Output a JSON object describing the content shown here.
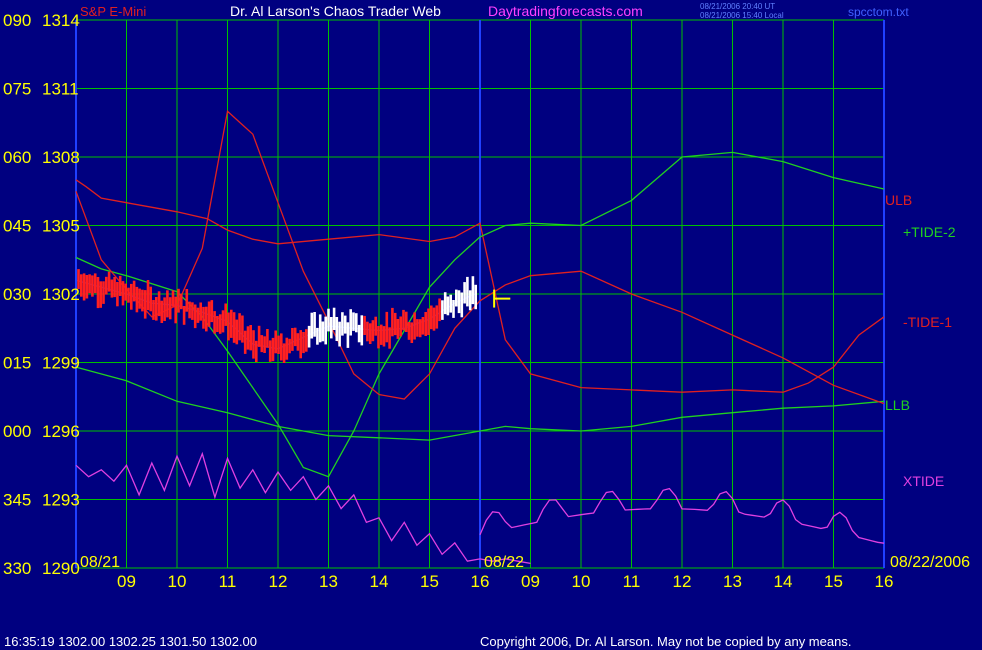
{
  "header": {
    "instrument": "S&P E-Mini",
    "title": "Dr. Al Larson's Chaos Trader Web",
    "site": "Daytradingforecasts.com",
    "timestamp_ut": "08/21/2006 20:40 UT",
    "timestamp_local": "08/21/2006 15:40 Local",
    "filename": "spcctom.txt"
  },
  "footer": {
    "quote": "16:35:19  1302.00 1302.25 1301.50 1302.00",
    "copyright": "Copyright 2006, Dr. Al Larson. May not be copied by any means."
  },
  "colors": {
    "background": "#000080",
    "grid": "#00c000",
    "axis_text": "#ffff00",
    "ulb": "#e02020",
    "llb": "#20d020",
    "xtide": "#e040e0",
    "tide_blue": "#2040ff",
    "bars_red": "#ff2020",
    "bars_white": "#ffffff",
    "forecast_mark": "#ffff00"
  },
  "chart_data": {
    "type": "line",
    "y_left_angle_labels": [
      "090",
      "075",
      "060",
      "045",
      "030",
      "015",
      "000",
      "345",
      "330"
    ],
    "y_right_price_labels": [
      "1314",
      "1311",
      "1308",
      "1305",
      "1302",
      "1299",
      "1296",
      "1293",
      "1290"
    ],
    "ylim": [
      1290,
      1314
    ],
    "x_hour_labels": [
      "09",
      "10",
      "11",
      "12",
      "13",
      "14",
      "15",
      "16",
      "09",
      "10",
      "11",
      "12",
      "13",
      "14",
      "15",
      "16"
    ],
    "date_labels": [
      "08/21",
      "08/22",
      "08/22/2006"
    ],
    "series_labels": [
      "ULB",
      "+TIDE-2",
      "-TIDE-1",
      "LLB",
      "XTIDE"
    ],
    "series": [
      {
        "name": "ULB",
        "x": [
          0,
          0.2,
          0.5,
          1.0,
          2.0,
          2.6,
          3.0,
          3.5,
          4.0,
          5.0,
          6.0,
          7.0,
          7.5,
          8.0,
          8.5,
          9.0,
          10.0,
          11.0,
          12.0,
          13.0,
          14.0,
          14.5,
          15.0,
          15.5,
          16.0
        ],
        "y": [
          1307.0,
          1306.7,
          1306.2,
          1306.0,
          1305.6,
          1305.3,
          1304.8,
          1304.4,
          1304.2,
          1304.4,
          1304.6,
          1304.3,
          1304.5,
          1305.1,
          1300.0,
          1298.5,
          1297.9,
          1297.8,
          1297.7,
          1297.8,
          1297.7,
          1298.1,
          1298.8,
          1300.2,
          1301.0
        ]
      },
      {
        "name": "LLB",
        "x": [
          0,
          1.0,
          2.0,
          3.0,
          4.0,
          5.0,
          6.0,
          7.0,
          8.0,
          8.5,
          9.0,
          10.0,
          11.0,
          12.0,
          13.0,
          14.0,
          15.0,
          16.0
        ],
        "y": [
          1298.8,
          1298.2,
          1297.3,
          1296.8,
          1296.2,
          1295.8,
          1295.7,
          1295.6,
          1296.0,
          1296.2,
          1296.1,
          1296.0,
          1296.2,
          1296.6,
          1296.8,
          1297.0,
          1297.1,
          1297.3
        ]
      },
      {
        "name": "+TIDE-2",
        "x": [
          0,
          0.5,
          1.0,
          2.0,
          2.5,
          3.0,
          4.0,
          4.5,
          5.0,
          5.5,
          6.0,
          6.5,
          7.0,
          7.5,
          8.0,
          8.5,
          9.0,
          10.0,
          11.0,
          12.0,
          13.0,
          14.0,
          15.0,
          16.0
        ],
        "y": [
          1303.6,
          1303.1,
          1302.8,
          1302.1,
          1301.0,
          1299.5,
          1296.3,
          1294.4,
          1294.0,
          1296.0,
          1298.5,
          1300.4,
          1302.3,
          1303.5,
          1304.5,
          1305.0,
          1305.1,
          1305.0,
          1306.1,
          1308.0,
          1308.2,
          1307.8,
          1307.1,
          1306.6
        ]
      },
      {
        "name": "-TIDE-1",
        "x": [
          0,
          0.5,
          1.0,
          1.5,
          2.0,
          2.5,
          3.0,
          3.5,
          4.0,
          4.5,
          5.0,
          5.5,
          6.0,
          6.5,
          7.0,
          7.5,
          8.0,
          8.5,
          9.0,
          10.0,
          11.0,
          12.0,
          13.0,
          14.0,
          15.0,
          16.0
        ],
        "y": [
          1306.5,
          1303.5,
          1302.2,
          1301.0,
          1301.5,
          1304.0,
          1310.0,
          1309.0,
          1306.0,
          1303.0,
          1300.8,
          1298.5,
          1297.6,
          1297.4,
          1298.5,
          1300.5,
          1301.7,
          1302.4,
          1302.8,
          1303.0,
          1302.0,
          1301.2,
          1300.2,
          1299.2,
          1298.0,
          1297.2
        ]
      },
      {
        "name": "XTIDE",
        "x": [
          0,
          0.25,
          0.5,
          0.75,
          1.0,
          1.25,
          1.5,
          1.75,
          2.0,
          2.25,
          2.5,
          2.75,
          3.0,
          3.25,
          3.5,
          3.75,
          4.0,
          4.25,
          4.5,
          4.75,
          5.0,
          5.25,
          5.5,
          5.75,
          6.0,
          6.25,
          6.5,
          6.75,
          7.0,
          7.25,
          7.5,
          7.75,
          8.0,
          8.25,
          8.5,
          8.75,
          9.0
        ],
        "y": [
          1294.5,
          1294.0,
          1294.3,
          1293.8,
          1294.5,
          1293.2,
          1294.6,
          1293.4,
          1294.9,
          1293.6,
          1295.0,
          1293.1,
          1294.8,
          1293.5,
          1294.3,
          1293.3,
          1294.2,
          1293.4,
          1294.0,
          1293.0,
          1293.6,
          1292.6,
          1293.2,
          1292.0,
          1292.2,
          1291.2,
          1292.0,
          1291.0,
          1291.5,
          1290.6,
          1291.1,
          1290.3,
          1290.4,
          1290.3,
          1290.4,
          1290.3,
          1290.2
        ]
      },
      {
        "name": "Price",
        "x": [
          0,
          0.5,
          1.0,
          1.5,
          2.0,
          2.5,
          3.0,
          3.5,
          4.0,
          4.5,
          5.0,
          5.5,
          6.0,
          6.5,
          7.0,
          7.5,
          7.9
        ],
        "y": [
          1302.6,
          1302.3,
          1302.0,
          1301.6,
          1301.5,
          1301.2,
          1300.8,
          1299.8,
          1299.6,
          1300.1,
          1300.6,
          1300.5,
          1300.4,
          1300.5,
          1300.9,
          1301.6,
          1302.0
        ]
      }
    ]
  }
}
